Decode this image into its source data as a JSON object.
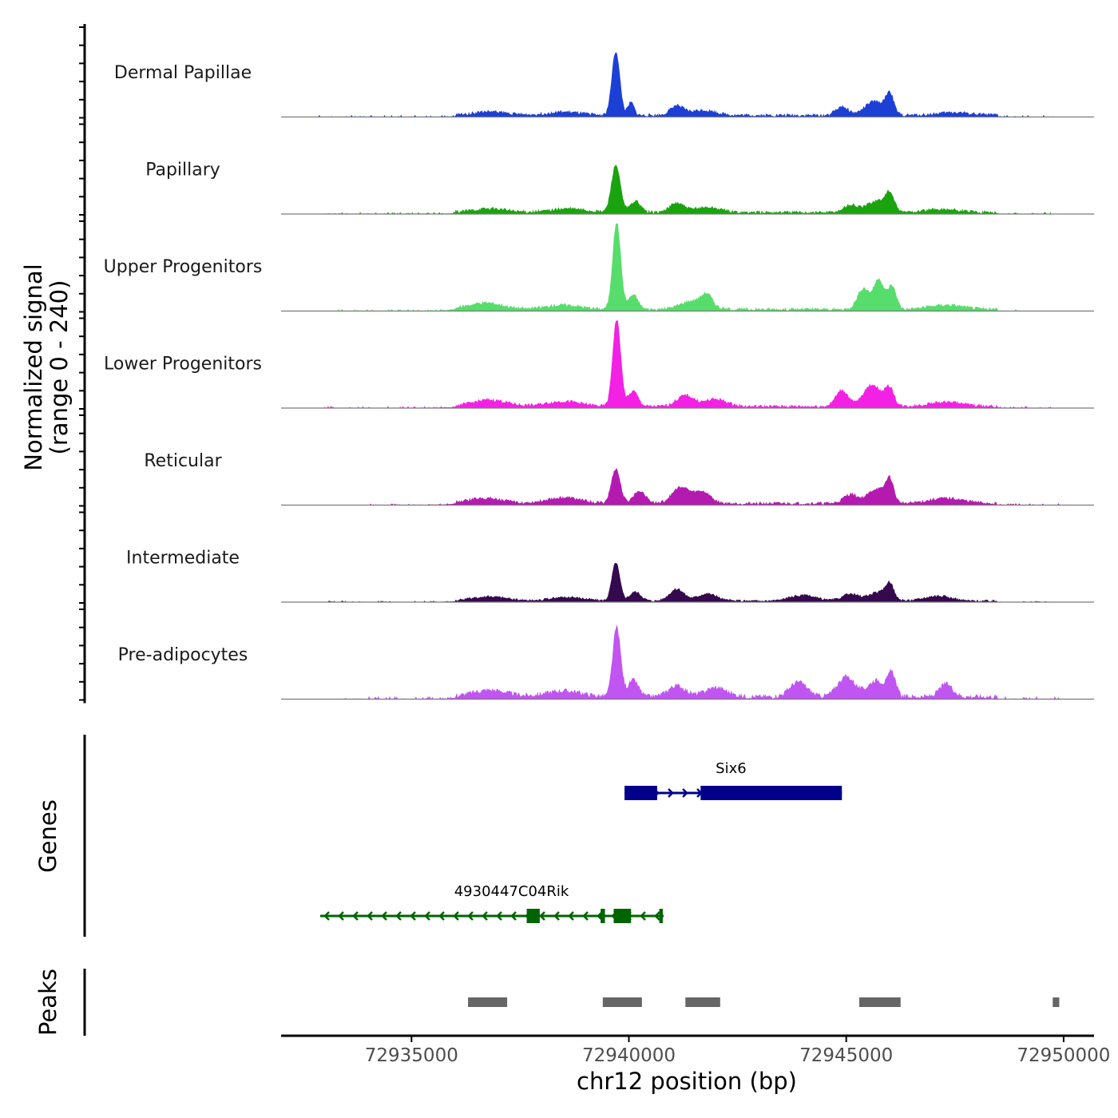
{
  "chart_data": {
    "type": "area",
    "chromosome": "chr12",
    "region": [
      72932000,
      72950700
    ],
    "xlabel": "chr12 position (bp)",
    "x_ticks": [
      72935000,
      72940000,
      72945000,
      72950000
    ],
    "coverage_ylabel": [
      "Normalized signal",
      "(range 0 - 240)"
    ],
    "ylim": [
      0,
      240
    ],
    "genes_label": "Genes",
    "peaks_label": "Peaks",
    "tracks": [
      {
        "name": "Dermal Papillae",
        "color": "#1c3fd6",
        "max": 175,
        "peaks": [
          [
            72939700,
            175,
            90
          ],
          [
            72940050,
            35,
            70
          ],
          [
            72941100,
            25,
            150
          ],
          [
            72941700,
            14,
            300
          ],
          [
            72944900,
            25,
            140
          ],
          [
            72945650,
            38,
            220
          ],
          [
            72946000,
            55,
            90
          ],
          [
            72936800,
            10,
            400
          ],
          [
            72938500,
            9,
            400
          ],
          [
            72947500,
            8,
            400
          ]
        ],
        "base": 4,
        "range": [
          72932700,
          72949900
        ]
      },
      {
        "name": "Papillary",
        "color": "#1ba30f",
        "max": 130,
        "peaks": [
          [
            72939700,
            130,
            100
          ],
          [
            72940150,
            30,
            120
          ],
          [
            72941100,
            25,
            160
          ],
          [
            72941800,
            14,
            300
          ],
          [
            72945100,
            20,
            160
          ],
          [
            72945700,
            32,
            220
          ],
          [
            72946000,
            45,
            100
          ],
          [
            72936800,
            10,
            400
          ],
          [
            72938600,
            10,
            400
          ],
          [
            72947200,
            8,
            400
          ]
        ],
        "base": 4,
        "range": [
          72933000,
          72949700
        ]
      },
      {
        "name": "Upper Progenitors",
        "color": "#57dd6b",
        "max": 240,
        "peaks": [
          [
            72939720,
            240,
            90
          ],
          [
            72940100,
            40,
            110
          ],
          [
            72941500,
            24,
            300
          ],
          [
            72941800,
            30,
            120
          ],
          [
            72945400,
            58,
            140
          ],
          [
            72945750,
            82,
            110
          ],
          [
            72946050,
            64,
            100
          ],
          [
            72936700,
            18,
            400
          ],
          [
            72938500,
            12,
            400
          ],
          [
            72947300,
            12,
            400
          ]
        ],
        "base": 4,
        "range": [
          72933000,
          72949700
        ]
      },
      {
        "name": "Lower Progenitors",
        "color": "#f321e4",
        "max": 240,
        "peaks": [
          [
            72939720,
            240,
            90
          ],
          [
            72940100,
            42,
            110
          ],
          [
            72941300,
            30,
            200
          ],
          [
            72942000,
            20,
            250
          ],
          [
            72944900,
            45,
            140
          ],
          [
            72945600,
            60,
            200
          ],
          [
            72946000,
            48,
            100
          ],
          [
            72936800,
            18,
            400
          ],
          [
            72938500,
            14,
            400
          ],
          [
            72947300,
            12,
            400
          ]
        ],
        "base": 4,
        "range": [
          72933000,
          72949700
        ]
      },
      {
        "name": "Reticular",
        "color": "#b41ab0",
        "max": 95,
        "peaks": [
          [
            72939700,
            95,
            100
          ],
          [
            72940250,
            35,
            140
          ],
          [
            72941200,
            45,
            200
          ],
          [
            72941700,
            32,
            180
          ],
          [
            72945100,
            25,
            160
          ],
          [
            72945700,
            40,
            200
          ],
          [
            72946000,
            60,
            90
          ],
          [
            72936700,
            15,
            400
          ],
          [
            72938500,
            16,
            400
          ],
          [
            72947300,
            14,
            400
          ]
        ],
        "base": 4,
        "range": [
          72934000,
          72949900
        ]
      },
      {
        "name": "Intermediate",
        "color": "#35094e",
        "max": 105,
        "peaks": [
          [
            72939700,
            105,
            90
          ],
          [
            72940150,
            25,
            130
          ],
          [
            72941100,
            32,
            170
          ],
          [
            72941800,
            20,
            220
          ],
          [
            72944000,
            15,
            300
          ],
          [
            72945100,
            18,
            200
          ],
          [
            72945750,
            24,
            220
          ],
          [
            72946000,
            40,
            90
          ],
          [
            72936800,
            12,
            400
          ],
          [
            72938600,
            10,
            400
          ],
          [
            72947100,
            14,
            300
          ]
        ],
        "base": 3,
        "range": [
          72932900,
          72949900
        ]
      },
      {
        "name": "Pre-adipocytes",
        "color": "#c055f1",
        "max": 190,
        "peaks": [
          [
            72939720,
            190,
            90
          ],
          [
            72940100,
            45,
            120
          ],
          [
            72941100,
            30,
            200
          ],
          [
            72942000,
            25,
            250
          ],
          [
            72943900,
            40,
            200
          ],
          [
            72945000,
            55,
            200
          ],
          [
            72945700,
            45,
            200
          ],
          [
            72946050,
            60,
            90
          ],
          [
            72947300,
            35,
            150
          ],
          [
            72936800,
            18,
            400
          ],
          [
            72938500,
            16,
            400
          ]
        ],
        "base": 6,
        "range": [
          72933300,
          72949900
        ]
      }
    ],
    "genes": [
      {
        "name": "Six6",
        "strand": "+",
        "color": "#00008b",
        "start": 72939900,
        "end": 72944900,
        "exons": [
          [
            72939900,
            72940650
          ],
          [
            72941650,
            72944900
          ]
        ]
      },
      {
        "name": "4930447C04Rik",
        "strand": "-",
        "color": "#006400",
        "start": 72932900,
        "end": 72940800,
        "exons": [
          [
            72937650,
            72937950
          ],
          [
            72939350,
            72939450
          ],
          [
            72939650,
            72940050
          ],
          [
            72940700,
            72940780
          ]
        ]
      }
    ],
    "peaks": [
      [
        72936300,
        72937200
      ],
      [
        72939400,
        72940300
      ],
      [
        72941300,
        72942100
      ],
      [
        72945300,
        72946250
      ],
      [
        72949750,
        72949900
      ]
    ]
  }
}
